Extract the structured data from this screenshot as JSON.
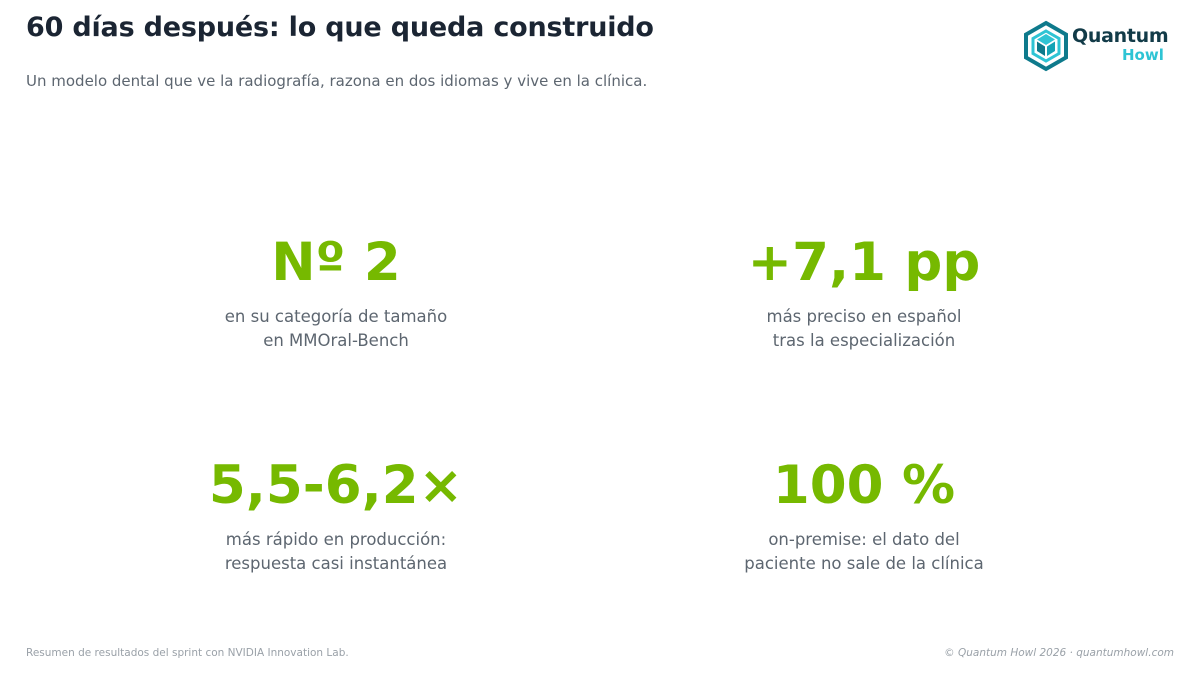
{
  "header": {
    "title": "60 días después: lo que queda construido",
    "subtitle": "Un modelo dental que ve la radiografía, razona en dos idiomas y vive en la clínica."
  },
  "logo": {
    "icon": "hexagon-cube-logo-icon",
    "word1": "Quantum",
    "word2": "Howl",
    "colors": {
      "dark": "#0e7a8c",
      "light": "#2ec4d4",
      "text": "#123b48"
    }
  },
  "stats": [
    {
      "value": "Nº 2",
      "desc_line1": "en su categoría de tamaño",
      "desc_line2": "en MMOral-Bench"
    },
    {
      "value": "+7,1 pp",
      "desc_line1": "más preciso en español",
      "desc_line2": "tras la especialización"
    },
    {
      "value": "5,5-6,2×",
      "desc_line1": "más rápido en producción:",
      "desc_line2": "respuesta casi instantánea"
    },
    {
      "value": "100 %",
      "desc_line1": "on-premise: el dato del",
      "desc_line2": "paciente no sale de la clínica"
    }
  ],
  "footer": {
    "left": "Resumen de resultados del sprint con NVIDIA Innovation Lab.",
    "right": "© Quantum Howl 2026 · quantumhowl.com"
  },
  "colors": {
    "accent": "#76b900",
    "title": "#1b2533",
    "body_text": "#5d6670",
    "footer_text": "#9aa1a8"
  }
}
